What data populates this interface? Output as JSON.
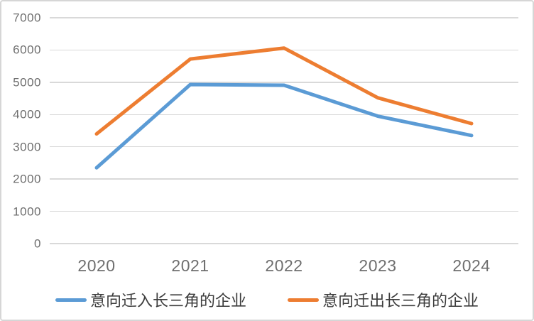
{
  "chart_data": {
    "type": "line",
    "x": [
      "2020",
      "2021",
      "2022",
      "2023",
      "2024"
    ],
    "series": [
      {
        "name": "意向迁入长三角的企业",
        "color": "#5B9BD5",
        "values": [
          2350,
          4930,
          4910,
          3950,
          3350
        ]
      },
      {
        "name": "意向迁出长三角的企业",
        "color": "#ED7D31",
        "values": [
          3400,
          5720,
          6060,
          4520,
          3720
        ]
      }
    ],
    "title": "",
    "xlabel": "",
    "ylabel": "",
    "ylim": [
      0,
      7000
    ],
    "ytick_step": 1000,
    "ytick_labels": [
      "0",
      "1000",
      "2000",
      "3000",
      "4000",
      "5000",
      "6000",
      "7000"
    ],
    "grid": true,
    "gridline_color": "#d9d9d9",
    "axis_label_color": "#6e6e6e",
    "legend_position": "bottom",
    "legend_text_color": "#3d3d3d"
  }
}
